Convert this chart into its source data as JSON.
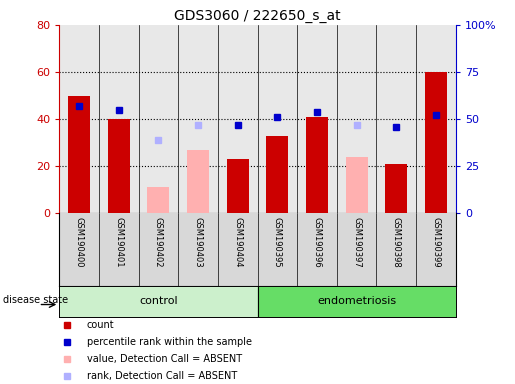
{
  "title": "GDS3060 / 222650_s_at",
  "samples": [
    "GSM190400",
    "GSM190401",
    "GSM190402",
    "GSM190403",
    "GSM190404",
    "GSM190395",
    "GSM190396",
    "GSM190397",
    "GSM190398",
    "GSM190399"
  ],
  "groups": [
    "control",
    "control",
    "control",
    "control",
    "control",
    "endometriosis",
    "endometriosis",
    "endometriosis",
    "endometriosis",
    "endometriosis"
  ],
  "count_values": [
    50,
    40,
    null,
    null,
    23,
    33,
    41,
    null,
    21,
    60
  ],
  "count_absent_values": [
    null,
    null,
    11,
    27,
    null,
    null,
    null,
    24,
    null,
    null
  ],
  "percentile_rank_values": [
    57,
    55,
    null,
    null,
    47,
    51,
    54,
    null,
    46,
    52
  ],
  "percentile_rank_absent_values": [
    null,
    null,
    39,
    47,
    null,
    null,
    null,
    47,
    null,
    null
  ],
  "left_ylim": [
    0,
    80
  ],
  "right_ylim": [
    0,
    100
  ],
  "left_yticks": [
    0,
    20,
    40,
    60,
    80
  ],
  "right_yticks": [
    0,
    25,
    50,
    75,
    100
  ],
  "right_yticklabels": [
    "0",
    "25",
    "50",
    "75",
    "100%"
  ],
  "left_color": "#cc0000",
  "right_color": "#0000cc",
  "absent_bar_color": "#ffb0b0",
  "absent_dot_color": "#b0b0ff",
  "control_bg": "#ccf0cc",
  "endometriosis_bg": "#66dd66",
  "label_bg": "#d8d8d8"
}
